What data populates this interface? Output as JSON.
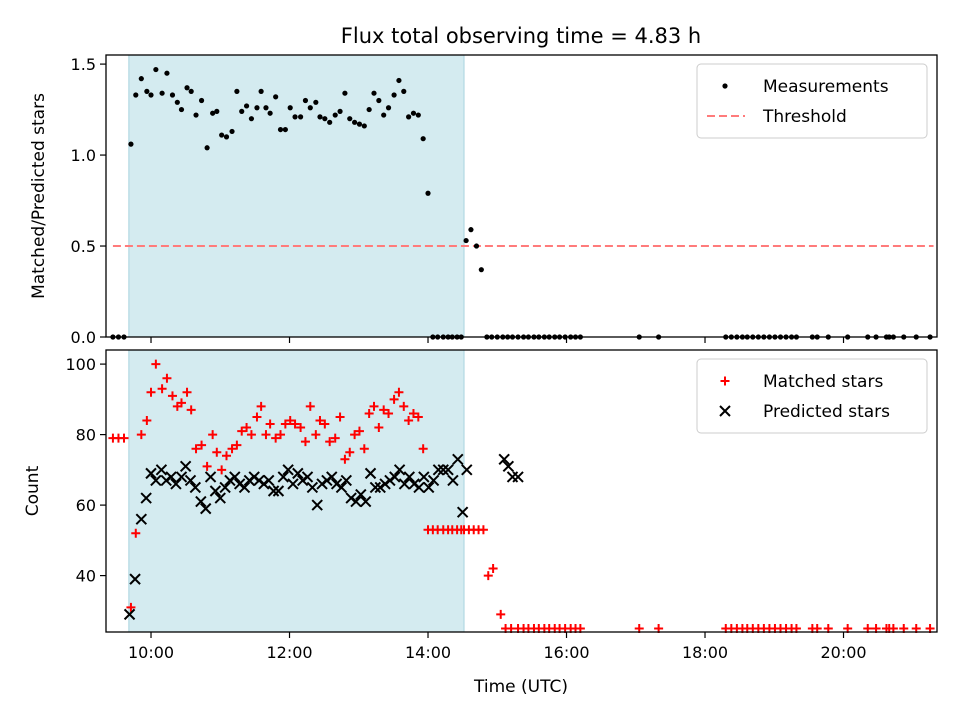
{
  "chart_data": {
    "title": "Flux total observing time = 4.83 h",
    "xlabel": "Time (UTC)",
    "xlim": [
      9.35,
      21.35
    ],
    "x_ticks": [
      10,
      12,
      14,
      16,
      18,
      20
    ],
    "x_tick_labels": [
      "10:00",
      "12:00",
      "14:00",
      "16:00",
      "18:00",
      "20:00"
    ],
    "shaded_span": [
      9.68,
      14.52
    ],
    "panels": [
      {
        "type": "scatter",
        "ylabel": "Matched/Predicted stars",
        "ylim": [
          0,
          1.55
        ],
        "y_ticks": [
          0.0,
          0.5,
          1.0,
          1.5
        ],
        "y_tick_labels": [
          "0.0",
          "0.5",
          "1.0",
          "1.5"
        ],
        "legend_position": "top-right",
        "threshold": {
          "name": "Threshold",
          "value": 0.5,
          "x_range": [
            9.45,
            21.3
          ],
          "color": "#ff7b7b"
        },
        "series": [
          {
            "name": "Measurements",
            "marker": "dot",
            "color": "#000000",
            "x": [
              9.45,
              9.53,
              9.61,
              9.71,
              9.78,
              9.86,
              9.94,
              10.0,
              10.07,
              10.16,
              10.23,
              10.31,
              10.38,
              10.44,
              10.52,
              10.58,
              10.65,
              10.73,
              10.81,
              10.89,
              10.95,
              11.02,
              11.09,
              11.17,
              11.24,
              11.31,
              11.38,
              11.45,
              11.53,
              11.59,
              11.66,
              11.72,
              11.8,
              11.87,
              11.94,
              12.01,
              12.08,
              12.16,
              12.23,
              12.3,
              12.38,
              12.44,
              12.51,
              12.58,
              12.66,
              12.73,
              12.8,
              12.87,
              12.94,
              13.01,
              13.08,
              13.15,
              13.22,
              13.29,
              13.36,
              13.43,
              13.51,
              13.58,
              13.65,
              13.72,
              13.79,
              13.86,
              13.93,
              14.0,
              14.07,
              14.14,
              14.22,
              14.29,
              14.35,
              14.42,
              14.48,
              14.55,
              14.62,
              14.7,
              14.77,
              14.85,
              14.92,
              15.0,
              15.08,
              15.15,
              15.22,
              15.3,
              15.38,
              15.45,
              15.53,
              15.6,
              15.68,
              15.75,
              15.83,
              15.9,
              15.98,
              16.06,
              16.13,
              16.2,
              17.05,
              17.33,
              18.3,
              18.38,
              18.46,
              18.54,
              18.61,
              18.69,
              18.77,
              18.85,
              18.93,
              19.01,
              19.09,
              19.17,
              19.25,
              19.32,
              19.55,
              19.62,
              19.78,
              20.06,
              20.35,
              20.47,
              20.62,
              20.66,
              20.72,
              20.87,
              21.05,
              21.25
            ],
            "y": [
              0,
              0,
              0,
              1.06,
              1.33,
              1.42,
              1.35,
              1.33,
              1.47,
              1.34,
              1.45,
              1.33,
              1.29,
              1.25,
              1.37,
              1.35,
              1.22,
              1.3,
              1.04,
              1.23,
              1.24,
              1.11,
              1.1,
              1.13,
              1.35,
              1.24,
              1.27,
              1.2,
              1.26,
              1.35,
              1.26,
              1.23,
              1.32,
              1.14,
              1.14,
              1.26,
              1.21,
              1.21,
              1.3,
              1.26,
              1.29,
              1.21,
              1.2,
              1.18,
              1.22,
              1.24,
              1.34,
              1.2,
              1.18,
              1.17,
              1.16,
              1.25,
              1.34,
              1.3,
              1.22,
              1.26,
              1.33,
              1.41,
              1.35,
              1.21,
              1.23,
              1.22,
              1.09,
              0.79,
              0,
              0,
              0,
              0,
              0,
              0,
              0,
              0.53,
              0.59,
              0.5,
              0.37,
              0,
              0,
              0,
              0,
              0,
              0,
              0,
              0,
              0,
              0,
              0,
              0,
              0,
              0,
              0,
              0,
              0,
              0,
              0,
              0,
              0,
              0,
              0,
              0,
              0,
              0,
              0,
              0,
              0,
              0,
              0,
              0,
              0,
              0,
              0,
              0,
              0,
              0,
              0,
              0,
              0,
              0,
              0,
              0,
              0,
              0,
              0
            ]
          }
        ]
      },
      {
        "type": "scatter",
        "ylabel": "Count",
        "ylim": [
          24,
          104
        ],
        "y_ticks": [
          40,
          60,
          80,
          100
        ],
        "y_tick_labels": [
          "40",
          "60",
          "80",
          "100"
        ],
        "legend_position": "top-right",
        "series": [
          {
            "name": "Matched stars",
            "marker": "plus",
            "color": "#ff0000",
            "x": [
              9.45,
              9.53,
              9.61,
              9.71,
              9.78,
              9.86,
              9.94,
              10.0,
              10.07,
              10.16,
              10.23,
              10.31,
              10.38,
              10.44,
              10.52,
              10.58,
              10.65,
              10.73,
              10.81,
              10.89,
              10.95,
              11.02,
              11.09,
              11.17,
              11.24,
              11.31,
              11.38,
              11.45,
              11.53,
              11.59,
              11.66,
              11.72,
              11.8,
              11.87,
              11.94,
              12.01,
              12.08,
              12.16,
              12.23,
              12.3,
              12.38,
              12.44,
              12.51,
              12.58,
              12.66,
              12.73,
              12.8,
              12.87,
              12.94,
              13.01,
              13.08,
              13.15,
              13.22,
              13.29,
              13.36,
              13.43,
              13.51,
              13.58,
              13.65,
              13.72,
              13.79,
              13.86,
              13.93,
              14.0,
              14.07,
              14.14,
              14.22,
              14.29,
              14.35,
              14.42,
              14.48,
              14.52,
              14.59,
              14.66,
              14.73,
              14.8,
              14.87,
              14.94,
              15.05,
              15.12,
              15.2,
              15.3,
              15.38,
              15.45,
              15.53,
              15.6,
              15.68,
              15.75,
              15.83,
              15.9,
              15.98,
              16.06,
              16.13,
              16.2,
              17.05,
              17.33,
              18.3,
              18.38,
              18.46,
              18.54,
              18.61,
              18.69,
              18.77,
              18.85,
              18.93,
              19.01,
              19.09,
              19.17,
              19.25,
              19.32,
              19.55,
              19.62,
              19.78,
              20.06,
              20.35,
              20.47,
              20.62,
              20.66,
              20.72,
              20.87,
              21.05,
              21.25
            ],
            "y": [
              79,
              79,
              79,
              31,
              52,
              80,
              84,
              92,
              100,
              93,
              96,
              91,
              88,
              89,
              92,
              87,
              76,
              77,
              71,
              80,
              75,
              70,
              74,
              76,
              77,
              81,
              82,
              80,
              85,
              88,
              80,
              83,
              79,
              80,
              83,
              84,
              83,
              82,
              78,
              88,
              80,
              84,
              83,
              78,
              79,
              85,
              73,
              75,
              80,
              81,
              76,
              86,
              88,
              82,
              87,
              86,
              90,
              92,
              88,
              84,
              86,
              85,
              76,
              53,
              53,
              53,
              53,
              53,
              53,
              53,
              53,
              53,
              53,
              53,
              53,
              53,
              40,
              42,
              29,
              25,
              25,
              25,
              25,
              25,
              25,
              25,
              25,
              25,
              25,
              25,
              25,
              25,
              25,
              25,
              25,
              25,
              25,
              25,
              25,
              25,
              25,
              25,
              25,
              25,
              25,
              25,
              25,
              25,
              25,
              25,
              25,
              25,
              25,
              25,
              25,
              25,
              25,
              25,
              25,
              25,
              25,
              25
            ]
          },
          {
            "name": "Predicted stars",
            "marker": "x",
            "color": "#000000",
            "x": [
              9.69,
              9.77,
              9.86,
              9.93,
              10.0,
              10.07,
              10.15,
              10.22,
              10.29,
              10.36,
              10.44,
              10.5,
              10.57,
              10.64,
              10.72,
              10.79,
              10.86,
              10.93,
              11.0,
              11.07,
              11.14,
              11.21,
              11.28,
              11.35,
              11.42,
              11.49,
              11.56,
              11.63,
              11.7,
              11.77,
              11.84,
              11.91,
              11.98,
              12.05,
              12.12,
              12.19,
              12.26,
              12.33,
              12.4,
              12.47,
              12.54,
              12.61,
              12.68,
              12.75,
              12.82,
              12.89,
              12.96,
              13.03,
              13.1,
              13.17,
              13.24,
              13.31,
              13.38,
              13.45,
              13.52,
              13.59,
              13.66,
              13.73,
              13.8,
              13.87,
              13.94,
              14.01,
              14.08,
              14.15,
              14.22,
              14.29,
              14.36,
              14.43,
              14.5,
              14.56,
              15.1,
              15.16,
              15.22,
              15.3
            ],
            "y": [
              29,
              39,
              56,
              62,
              69,
              67,
              70,
              67,
              68,
              66,
              68,
              71,
              67,
              65,
              61,
              59,
              68,
              64,
              62,
              65,
              67,
              68,
              66,
              65,
              67,
              68,
              67,
              66,
              67,
              64,
              64,
              68,
              70,
              66,
              69,
              67,
              68,
              65,
              60,
              66,
              67,
              68,
              66,
              65,
              67,
              62,
              61,
              63,
              61,
              69,
              65,
              65,
              66,
              67,
              68,
              70,
              66,
              68,
              66,
              65,
              68,
              65,
              67,
              70,
              70,
              70,
              67,
              73,
              58,
              70,
              73,
              71,
              68,
              68
            ]
          }
        ]
      }
    ]
  }
}
